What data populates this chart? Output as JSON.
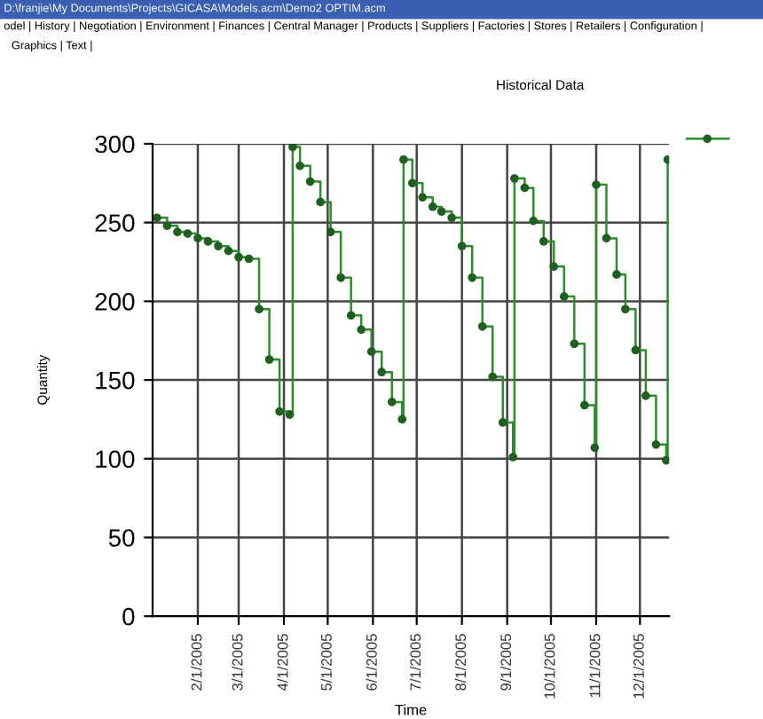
{
  "chart_data": {
    "type": "step",
    "title": "Historical Data",
    "xlabel": "Time",
    "ylabel": "Quantity",
    "annotations": [
      "D:\\franjie\\My Documents\\Projects\\GICASA\\Models.acm\\Demo2 OPTIM.acm",
      "odel | History | Negotiation | Environment | Finances | Central Manager | Products | Suppliers | Factories | Stores | Retailers | Configuration |",
      "Graphics | Text |"
    ],
    "x": [
      "2005-01-04",
      "2005-01-11",
      "2005-01-18",
      "2005-01-25",
      "2005-02-01",
      "2005-02-08",
      "2005-02-15",
      "2005-02-22",
      "2005-03-01",
      "2005-03-08",
      "2005-03-15",
      "2005-03-22",
      "2005-03-29",
      "2005-04-05",
      "2005-04-07",
      "2005-04-12",
      "2005-04-19",
      "2005-04-26",
      "2005-05-03",
      "2005-05-10",
      "2005-05-17",
      "2005-05-24",
      "2005-05-31",
      "2005-06-07",
      "2005-06-14",
      "2005-06-21",
      "2005-06-22",
      "2005-06-28",
      "2005-07-05",
      "2005-07-12",
      "2005-07-18",
      "2005-07-25",
      "2005-08-01",
      "2005-08-08",
      "2005-08-15",
      "2005-08-22",
      "2005-08-29",
      "2005-09-05",
      "2005-09-06",
      "2005-09-13",
      "2005-09-19",
      "2005-09-26",
      "2005-10-03",
      "2005-10-10",
      "2005-10-17",
      "2005-10-24",
      "2005-10-31",
      "2005-11-01",
      "2005-11-08",
      "2005-11-15",
      "2005-11-21",
      "2005-11-28",
      "2005-12-05",
      "2005-12-12",
      "2005-12-19",
      "2005-12-20"
    ],
    "series": [
      {
        "color": "#2e8b2e",
        "values": [
          253,
          248,
          244,
          243,
          240,
          238,
          235,
          232,
          228,
          227,
          195,
          163,
          130,
          128,
          298,
          286,
          276,
          263,
          244,
          215,
          191,
          182,
          168,
          155,
          136,
          125,
          290,
          275,
          266,
          260,
          257,
          253,
          235,
          215,
          184,
          152,
          123,
          101,
          278,
          272,
          251,
          238,
          222,
          203,
          173,
          134,
          107,
          274,
          240,
          217,
          195,
          169,
          140,
          109,
          99,
          290
        ]
      }
    ],
    "xlim": [
      "2005-01-01",
      "2005-12-21"
    ],
    "xticks": [
      {
        "value": "2005-02-01",
        "label": "2/1/2005"
      },
      {
        "value": "2005-03-01",
        "label": "3/1/2005"
      },
      {
        "value": "2005-04-01",
        "label": "4/1/2005"
      },
      {
        "value": "2005-05-01",
        "label": "5/1/2005"
      },
      {
        "value": "2005-06-01",
        "label": "6/1/2005"
      },
      {
        "value": "2005-07-01",
        "label": "7/1/2005"
      },
      {
        "value": "2005-08-01",
        "label": "8/1/2005"
      },
      {
        "value": "2005-09-01",
        "label": "9/1/2005"
      },
      {
        "value": "2005-10-01",
        "label": "10/1/2005"
      },
      {
        "value": "2005-11-01",
        "label": "11/1/2005"
      },
      {
        "value": "2005-12-01",
        "label": "12/1/2005"
      }
    ],
    "ylim": [
      0,
      300
    ],
    "yticks": [
      0,
      50,
      100,
      150,
      200,
      250,
      300
    ],
    "grid": true,
    "marker": "circle",
    "line_style": "solid"
  }
}
